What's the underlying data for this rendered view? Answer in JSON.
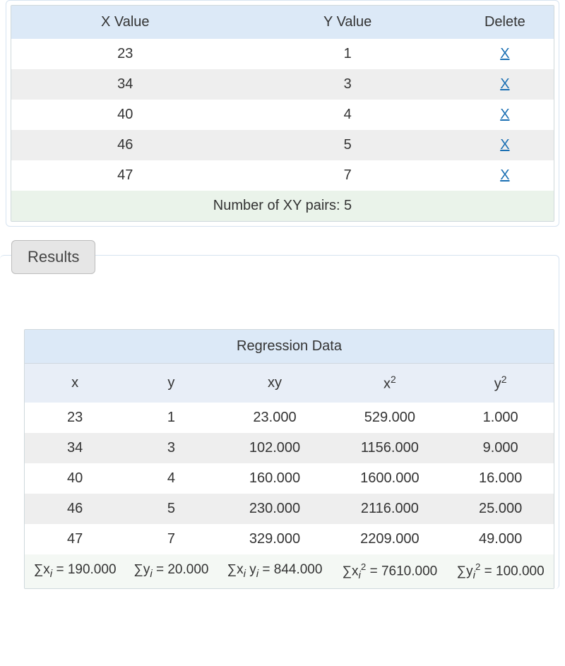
{
  "top_table": {
    "headers": {
      "x": "X Value",
      "y": "Y Value",
      "del": "Delete"
    },
    "rows": [
      {
        "x": "23",
        "y": "1",
        "del": "X"
      },
      {
        "x": "34",
        "y": "3",
        "del": "X"
      },
      {
        "x": "40",
        "y": "4",
        "del": "X"
      },
      {
        "x": "46",
        "y": "5",
        "del": "X"
      },
      {
        "x": "47",
        "y": "7",
        "del": "X"
      }
    ],
    "footer": "Number of XY pairs: 5"
  },
  "results_tab": "Results",
  "reg_table": {
    "title": "Regression Data",
    "headers": {
      "x": "x",
      "y": "y",
      "xy": "xy",
      "x2_base": "x",
      "x2_sup": "2",
      "y2_base": "y",
      "y2_sup": "2"
    },
    "rows": [
      {
        "x": "23",
        "y": "1",
        "xy": "23.000",
        "x2": "529.000",
        "y2": "1.000"
      },
      {
        "x": "34",
        "y": "3",
        "xy": "102.000",
        "x2": "1156.000",
        "y2": "9.000"
      },
      {
        "x": "40",
        "y": "4",
        "xy": "160.000",
        "x2": "1600.000",
        "y2": "16.000"
      },
      {
        "x": "46",
        "y": "5",
        "xy": "230.000",
        "x2": "2116.000",
        "y2": "25.000"
      },
      {
        "x": "47",
        "y": "7",
        "xy": "329.000",
        "x2": "2209.000",
        "y2": "49.000"
      }
    ],
    "sums": {
      "sx_pre": "∑x",
      "sx_val": " = 190.000",
      "sy_pre": "∑y",
      "sy_val": " = 20.000",
      "sxy_pre1": "∑x",
      "sxy_pre2": " y",
      "sxy_val": " = 844.000",
      "sx2_pre": "∑x",
      "sx2_sup": "2",
      "sx2_val": " = 7610.000",
      "sy2_pre": "∑y",
      "sy2_sup": "2",
      "sy2_val": " = 100.000",
      "sub_i": "i"
    }
  },
  "colors": {
    "header_bg": "#dce9f7",
    "subheader_bg": "#e8eef7",
    "stripe_bg": "#eeeeee",
    "footer_bg": "#eaf3ea",
    "link": "#1a6fb3",
    "border": "#d6e3f0"
  }
}
